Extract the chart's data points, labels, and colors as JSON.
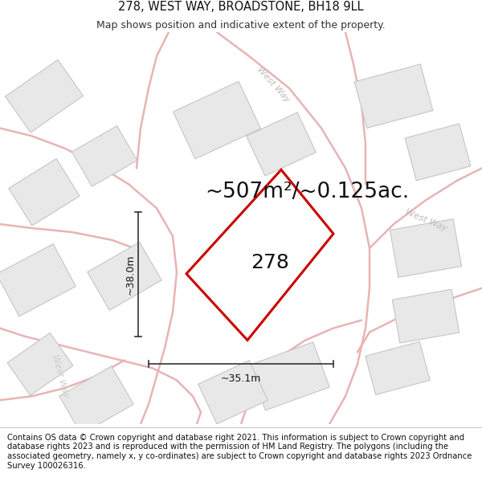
{
  "title": "278, WEST WAY, BROADSTONE, BH18 9LL",
  "subtitle": "Map shows position and indicative extent of the property.",
  "area_label": "~507m²/~0.125ac.",
  "property_number": "278",
  "dim_vertical": "~38.0m",
  "dim_horizontal": "~35.1m",
  "footer": "Contains OS data © Crown copyright and database right 2021. This information is subject to Crown copyright and database rights 2023 and is reproduced with the permission of HM Land Registry. The polygons (including the associated geometry, namely x, y co-ordinates) are subject to Crown copyright and database rights 2023 Ordnance Survey 100026316.",
  "background_color": "#ffffff",
  "map_bg": "#ffffff",
  "road_color": "#e8b4b4",
  "building_fill": "#e8e8e8",
  "building_edge": "#c0c0c0",
  "property_color": "#cc0000",
  "annotation_color": "#222222",
  "title_fontsize": 10.5,
  "subtitle_fontsize": 9,
  "area_fontsize": 19,
  "number_fontsize": 18,
  "dim_fontsize": 9,
  "footer_fontsize": 7.2,
  "street_label_color": "#bbbbbb",
  "street_label_fontsize": 8
}
